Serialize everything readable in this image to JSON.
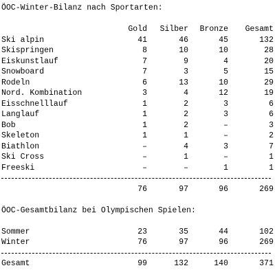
{
  "winter": {
    "title": "ÖOC-Winter-Bilanz nach Sportarten:",
    "headers": [
      "Gold",
      "Silber",
      "Bronze",
      "Gesamt"
    ],
    "rows": [
      {
        "sport": "Ski alpin",
        "gold": "41",
        "silber": "46",
        "bronze": "45",
        "gesamt": "132"
      },
      {
        "sport": "Skispringen",
        "gold": "8",
        "silber": "10",
        "bronze": "10",
        "gesamt": "28"
      },
      {
        "sport": "Eiskunstlauf",
        "gold": "7",
        "silber": "9",
        "bronze": "4",
        "gesamt": "20"
      },
      {
        "sport": "Snowboard",
        "gold": "7",
        "silber": "3",
        "bronze": "5",
        "gesamt": "15"
      },
      {
        "sport": "Rodeln",
        "gold": "6",
        "silber": "13",
        "bronze": "10",
        "gesamt": "29"
      },
      {
        "sport": "Nord. Kombination",
        "gold": "3",
        "silber": "4",
        "bronze": "12",
        "gesamt": "19"
      },
      {
        "sport": "Eisschnelllauf",
        "gold": "1",
        "silber": "2",
        "bronze": "3",
        "gesamt": "6"
      },
      {
        "sport": "Langlauf",
        "gold": "1",
        "silber": "2",
        "bronze": "3",
        "gesamt": "6"
      },
      {
        "sport": "Bob",
        "gold": "1",
        "silber": "2",
        "bronze": "–",
        "gesamt": "3"
      },
      {
        "sport": "Skeleton",
        "gold": "1",
        "silber": "1",
        "bronze": "–",
        "gesamt": "2"
      },
      {
        "sport": "Biathlon",
        "gold": "–",
        "silber": "4",
        "bronze": "3",
        "gesamt": "7"
      },
      {
        "sport": "Ski Cross",
        "gold": "–",
        "silber": "1",
        "bronze": "–",
        "gesamt": "1"
      },
      {
        "sport": "Freeski",
        "gold": "–",
        "silber": "–",
        "bronze": "1",
        "gesamt": "1"
      }
    ],
    "totals": {
      "gold": "76",
      "silber": "97",
      "bronze": "96",
      "gesamt": "269"
    }
  },
  "overall": {
    "title": "ÖOC-Gesamtbilanz bei Olympischen Spielen:",
    "rows": [
      {
        "label": "Sommer",
        "gold": "23",
        "silber": "35",
        "bronze": "44",
        "gesamt": "102"
      },
      {
        "label": "Winter",
        "gold": "76",
        "silber": "97",
        "bronze": "96",
        "gesamt": "269"
      }
    ],
    "total": {
      "label": "Gesamt",
      "gold": "99",
      "silber": "132",
      "bronze": "140",
      "gesamt": "371"
    }
  }
}
